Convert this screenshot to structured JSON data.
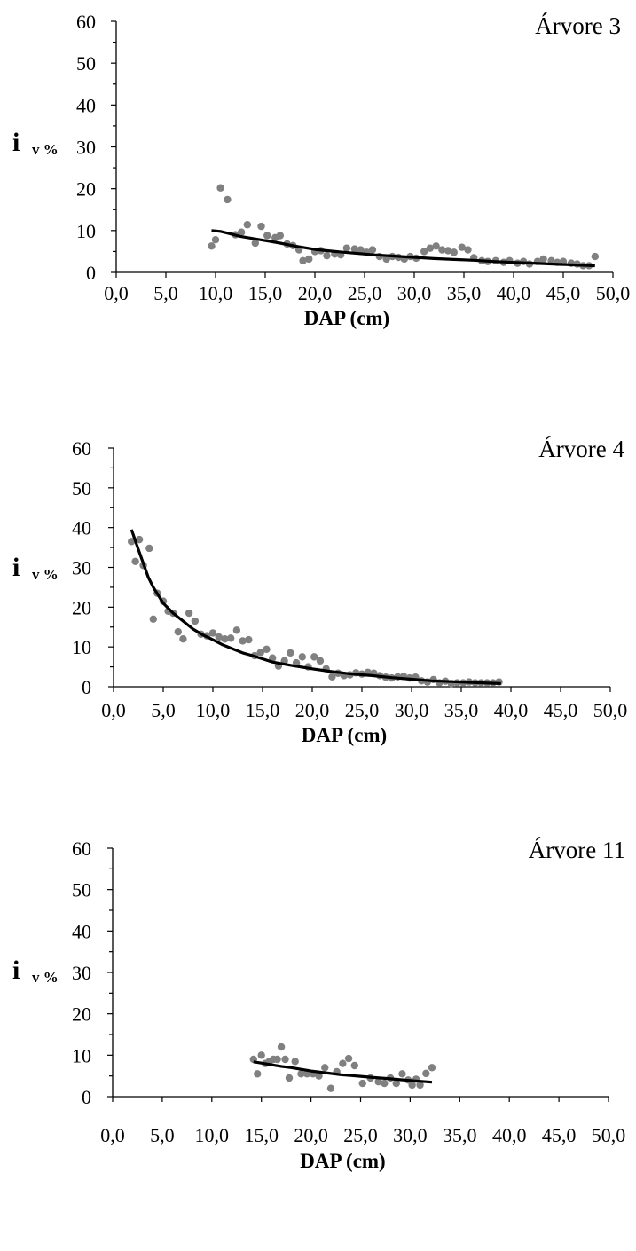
{
  "chart_data": [
    {
      "type": "scatter",
      "title": "Árvore 3",
      "xlabel": "DAP (cm)",
      "ylabel": "i",
      "ylabel_sub": "v %",
      "xlim": [
        0,
        50
      ],
      "ylim": [
        0,
        60
      ],
      "xticks": [
        "0,0",
        "5,0",
        "10,0",
        "15,0",
        "20,0",
        "25,0",
        "30,0",
        "35,0",
        "40,0",
        "45,0",
        "50,0"
      ],
      "yticks": [
        "0",
        "10",
        "20",
        "30",
        "40",
        "50",
        "60"
      ],
      "grid": false,
      "colors": {
        "points": "#808080",
        "trend": "#000000"
      },
      "series": [
        {
          "type": "scatter",
          "x": [
            9.6,
            10.0,
            10.5,
            11.2,
            12.0,
            12.6,
            13.2,
            14.0,
            14.6,
            15.2,
            16.0,
            16.5,
            17.2,
            17.8,
            18.4,
            18.8,
            19.4,
            20.0,
            20.6,
            21.2,
            22.0,
            22.6,
            23.2,
            24.0,
            24.6,
            25.2,
            25.8,
            26.5,
            27.2,
            27.8,
            28.4,
            29.0,
            29.6,
            30.2,
            31.0,
            31.6,
            32.2,
            32.8,
            33.4,
            34.0,
            34.8,
            35.4,
            36.0,
            36.8,
            37.4,
            38.2,
            39.0,
            39.6,
            40.4,
            41.0,
            41.6,
            42.4,
            43.0,
            43.8,
            44.4,
            45.0,
            45.8,
            46.4,
            47.0,
            47.6,
            48.2
          ],
          "y": [
            6.3,
            7.8,
            20.2,
            17.4,
            9.0,
            9.6,
            11.4,
            7.0,
            11.0,
            8.8,
            8.3,
            8.8,
            6.8,
            6.4,
            5.4,
            2.8,
            3.2,
            5.0,
            5.2,
            4.0,
            4.4,
            4.2,
            5.8,
            5.6,
            5.4,
            4.8,
            5.4,
            3.8,
            3.2,
            3.8,
            3.6,
            3.2,
            3.8,
            3.4,
            5.0,
            5.8,
            6.3,
            5.4,
            5.2,
            4.8,
            6.0,
            5.4,
            3.5,
            2.8,
            2.6,
            2.8,
            2.4,
            2.8,
            2.2,
            2.6,
            2.0,
            2.6,
            3.2,
            2.8,
            2.4,
            2.6,
            2.2,
            2.0,
            1.6,
            1.6,
            3.8
          ]
        },
        {
          "type": "line",
          "x": [
            9.6,
            10.5,
            11.5,
            12.5,
            13.5,
            14.5,
            15.5,
            16.5,
            18.0,
            20.0,
            22.0,
            24.0,
            26.0,
            28.0,
            30.0,
            32.0,
            34.0,
            36.0,
            38.0,
            40.0,
            42.0,
            44.0,
            46.0,
            48.2
          ],
          "y": [
            10.0,
            9.8,
            9.2,
            8.6,
            8.2,
            7.8,
            7.4,
            7.0,
            6.3,
            5.5,
            5.0,
            4.6,
            4.2,
            3.9,
            3.6,
            3.3,
            3.1,
            2.9,
            2.6,
            2.4,
            2.2,
            2.0,
            1.8,
            1.6
          ]
        }
      ]
    },
    {
      "type": "scatter",
      "title": "Árvore 4",
      "xlabel": "DAP (cm)",
      "ylabel": "i",
      "ylabel_sub": "v %",
      "xlim": [
        0,
        50
      ],
      "ylim": [
        0,
        60
      ],
      "xticks": [
        "0,0",
        "5,0",
        "10,0",
        "15,0",
        "20,0",
        "25,0",
        "30,0",
        "35,0",
        "40,0",
        "45,0",
        "50,0"
      ],
      "yticks": [
        "0",
        "10",
        "20",
        "30",
        "40",
        "50",
        "60"
      ],
      "grid": false,
      "colors": {
        "points": "#808080",
        "trend": "#000000"
      },
      "series": [
        {
          "type": "scatter",
          "x": [
            1.8,
            2.2,
            2.6,
            3.0,
            3.6,
            4.0,
            4.4,
            5.0,
            5.5,
            6.0,
            6.5,
            7.0,
            7.6,
            8.2,
            8.8,
            9.4,
            10.0,
            10.6,
            11.2,
            11.8,
            12.4,
            13.0,
            13.6,
            14.2,
            14.8,
            15.4,
            16.0,
            16.6,
            17.2,
            17.8,
            18.4,
            19.0,
            19.6,
            20.2,
            20.8,
            21.4,
            22.0,
            22.6,
            23.2,
            23.8,
            24.4,
            25.0,
            25.6,
            26.2,
            26.8,
            27.4,
            28.0,
            28.6,
            29.2,
            29.8,
            30.4,
            31.0,
            31.6,
            32.2,
            32.8,
            33.4,
            34.0,
            34.6,
            35.2,
            35.8,
            36.4,
            37.0,
            37.6,
            38.2,
            38.8
          ],
          "y": [
            36.5,
            31.5,
            37.0,
            30.5,
            34.8,
            17.0,
            23.5,
            21.5,
            19.0,
            18.5,
            13.8,
            12.0,
            18.5,
            16.5,
            13.2,
            12.8,
            13.5,
            12.5,
            12.0,
            12.2,
            14.2,
            11.5,
            11.8,
            7.8,
            8.6,
            9.4,
            7.2,
            5.2,
            6.5,
            8.5,
            6.0,
            7.5,
            5.0,
            7.5,
            6.5,
            4.5,
            2.5,
            3.4,
            2.8,
            3.0,
            3.5,
            3.2,
            3.6,
            3.4,
            2.8,
            2.4,
            2.2,
            2.5,
            2.6,
            2.2,
            2.4,
            1.5,
            1.2,
            1.8,
            1.0,
            1.4,
            0.8,
            1.0,
            1.0,
            1.2,
            1.0,
            1.0,
            1.0,
            1.0,
            1.2
          ]
        },
        {
          "type": "line",
          "x": [
            1.8,
            2.5,
            3.0,
            3.5,
            4.0,
            4.5,
            5.0,
            6.0,
            7.0,
            8.0,
            9.0,
            10.0,
            11.0,
            12.0,
            13.0,
            14.0,
            15.0,
            16.0,
            18.0,
            20.0,
            22.0,
            24.0,
            26.0,
            28.0,
            30.0,
            32.0,
            34.0,
            36.0,
            38.0,
            39.0
          ],
          "y": [
            39.5,
            34.5,
            31.0,
            27.5,
            25.0,
            23.0,
            21.0,
            18.5,
            16.5,
            14.5,
            13.0,
            11.8,
            10.5,
            9.5,
            8.5,
            7.8,
            7.0,
            6.2,
            5.3,
            4.5,
            3.8,
            3.2,
            2.8,
            2.3,
            1.9,
            1.5,
            1.3,
            1.1,
            0.9,
            0.8
          ]
        }
      ]
    },
    {
      "type": "scatter",
      "title": "Árvore 11",
      "xlabel": "DAP (cm)",
      "ylabel": "i",
      "ylabel_sub": "v %",
      "xlim": [
        0,
        50
      ],
      "ylim": [
        0,
        60
      ],
      "xticks": [
        "0,0",
        "5,0",
        "10,0",
        "15,0",
        "20,0",
        "25,0",
        "30,0",
        "35,0",
        "40,0",
        "45,0",
        "50,0"
      ],
      "yticks": [
        "0",
        "10",
        "20",
        "30",
        "40",
        "50",
        "60"
      ],
      "grid": false,
      "colors": {
        "points": "#808080",
        "trend": "#000000"
      },
      "series": [
        {
          "type": "scatter",
          "x": [
            14.2,
            14.6,
            15.0,
            15.4,
            15.8,
            16.2,
            16.6,
            17.0,
            17.4,
            17.8,
            18.4,
            19.0,
            19.6,
            20.2,
            20.8,
            21.4,
            22.0,
            22.6,
            23.2,
            23.8,
            24.4,
            25.2,
            26.0,
            26.8,
            27.4,
            28.0,
            28.6,
            29.2,
            29.8,
            30.2,
            30.6,
            31.0,
            31.6,
            32.2
          ],
          "y": [
            9.0,
            5.5,
            10.0,
            8.0,
            8.5,
            9.0,
            9.0,
            12.0,
            9.0,
            4.5,
            8.5,
            5.5,
            5.5,
            5.5,
            5.0,
            7.0,
            2.0,
            6.0,
            8.0,
            9.2,
            7.5,
            3.2,
            4.5,
            3.6,
            3.2,
            4.5,
            3.2,
            5.5,
            4.0,
            2.8,
            4.2,
            2.8,
            5.6,
            7.0
          ]
        },
        {
          "type": "line",
          "x": [
            14.2,
            15.0,
            16.0,
            17.0,
            18.0,
            19.0,
            20.0,
            21.0,
            22.0,
            23.0,
            24.0,
            25.0,
            26.0,
            27.0,
            28.0,
            29.0,
            30.0,
            31.0,
            32.2
          ],
          "y": [
            8.4,
            8.1,
            7.7,
            7.3,
            7.0,
            6.6,
            6.2,
            5.9,
            5.6,
            5.3,
            5.1,
            4.9,
            4.7,
            4.5,
            4.3,
            4.1,
            3.9,
            3.7,
            3.5
          ]
        }
      ]
    }
  ]
}
